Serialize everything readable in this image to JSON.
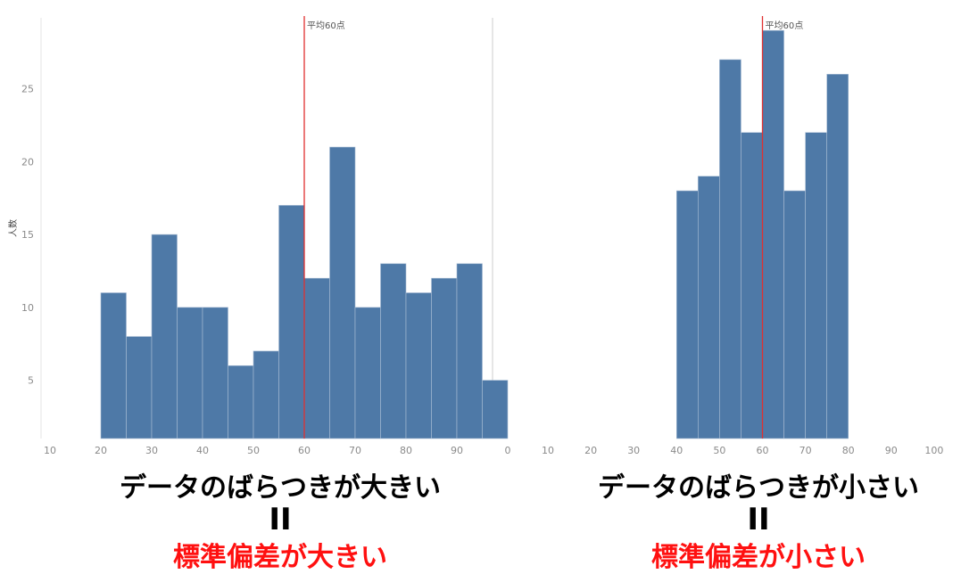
{
  "chart_data": [
    {
      "type": "bar",
      "ylabel": "人数",
      "x_ticks": [
        "10",
        "20",
        "30",
        "40",
        "50",
        "60",
        "70",
        "80",
        "90",
        "0"
      ],
      "y_ticks": [
        "5",
        "10",
        "15",
        "20",
        "25"
      ],
      "bin_width": 5,
      "bins_start": [
        20,
        25,
        30,
        35,
        40,
        45,
        50,
        55,
        60,
        65,
        70,
        75,
        80,
        85,
        90,
        95
      ],
      "values": [
        11,
        8,
        15,
        10,
        10,
        6,
        7,
        17,
        12,
        21,
        10,
        13,
        11,
        12,
        13,
        5
      ],
      "ylim": [
        1,
        29.5
      ],
      "mean_line": {
        "x": 60,
        "label": "平均60点"
      },
      "bar_color": "#4e79a7",
      "mean_color": "#e03030"
    },
    {
      "type": "bar",
      "x_ticks": [
        "10",
        "20",
        "30",
        "40",
        "50",
        "60",
        "70",
        "80",
        "90",
        "100"
      ],
      "bin_width": 5,
      "bins_start": [
        40,
        45,
        50,
        55,
        60,
        65,
        70,
        75
      ],
      "values": [
        18,
        19,
        27,
        22,
        29,
        18,
        22,
        26
      ],
      "ylim": [
        1,
        29.5
      ],
      "mean_line": {
        "x": 60,
        "label": "平均60点"
      },
      "bar_color": "#4e79a7",
      "mean_color": "#e03030"
    }
  ],
  "captions": {
    "left": {
      "main": "データのばらつきが大きい",
      "eq": "II",
      "sub": "標準偏差が大きい"
    },
    "right": {
      "main": "データのばらつきが小さい",
      "eq": "II",
      "sub": "標準偏差が小さい"
    }
  }
}
